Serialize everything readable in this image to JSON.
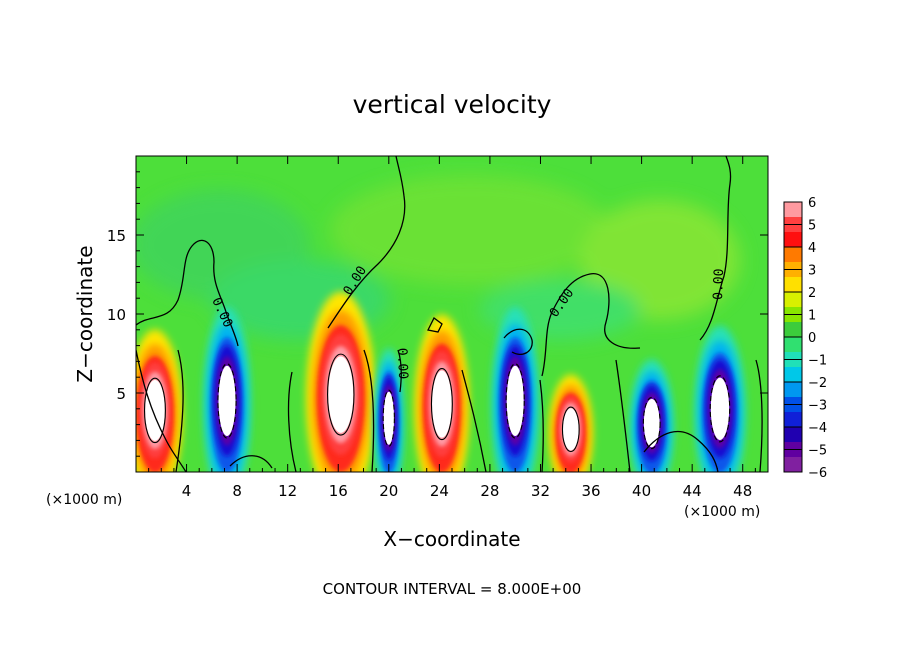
{
  "chart_data": {
    "type": "heatmap",
    "title": "vertical velocity",
    "xlabel": "X−coordinate",
    "ylabel": "Z−coordinate",
    "x_unit_label": "(×1000 m)",
    "footer": "CONTOUR INTERVAL = 8.000E+00",
    "xlim": [
      0,
      50
    ],
    "ylim": [
      0,
      20
    ],
    "x_ticks": [
      4,
      8,
      12,
      16,
      20,
      24,
      28,
      32,
      36,
      40,
      44,
      48
    ],
    "y_ticks": [
      5,
      10,
      15
    ],
    "colorbar": {
      "range": [
        -6,
        6
      ],
      "tick_labels": [
        "6",
        "5",
        "4",
        "3",
        "2",
        "1",
        "0",
        "−1",
        "−2",
        "−3",
        "−4",
        "−5",
        "−6"
      ],
      "colors": [
        "#ff9aa0",
        "#ff4040",
        "#ff1010",
        "#ff7a00",
        "#ffb000",
        "#ffe000",
        "#d8f000",
        "#88e600",
        "#3ccc3c",
        "#30e070",
        "#20e0b8",
        "#00c8e8",
        "#0098f0",
        "#0050e8",
        "#1020d8",
        "#2000b0",
        "#6000a0",
        "#8020a0"
      ]
    },
    "contour_label": "0.00",
    "cells": [
      {
        "x": 1.5,
        "z": 3.9,
        "w": 3.0,
        "sign": 1
      },
      {
        "x": 7.2,
        "z": 4.5,
        "w": 2.6,
        "sign": -1
      },
      {
        "x": 16.2,
        "z": 4.9,
        "w": 3.8,
        "sign": 1
      },
      {
        "x": 20.0,
        "z": 3.4,
        "w": 1.6,
        "sign": -1
      },
      {
        "x": 24.2,
        "z": 4.3,
        "w": 3.0,
        "sign": 1
      },
      {
        "x": 30.0,
        "z": 4.5,
        "w": 2.6,
        "sign": -1
      },
      {
        "x": 34.4,
        "z": 2.7,
        "w": 2.4,
        "sign": 1
      },
      {
        "x": 40.8,
        "z": 3.1,
        "w": 2.4,
        "sign": -1
      },
      {
        "x": 46.2,
        "z": 4.0,
        "w": 2.8,
        "sign": -1
      }
    ]
  }
}
